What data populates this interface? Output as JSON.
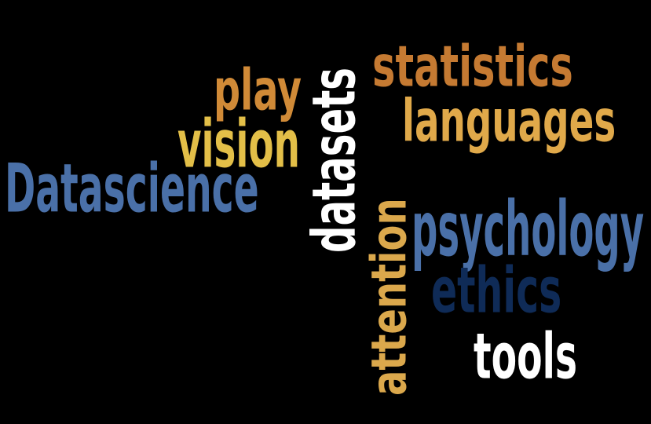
{
  "palette": {
    "background": "#000000",
    "blue": "#4a70a8",
    "navy": "#0f2b57",
    "orange": "#c57a32",
    "gold": "#e0a94a",
    "yellow": "#e3bf48",
    "white": "#ffffff"
  },
  "words": [
    {
      "id": "statistics",
      "text": "statistics",
      "color": "#c57a32",
      "orientation": "horizontal"
    },
    {
      "id": "play",
      "text": "play",
      "color": "#d08a37",
      "orientation": "horizontal"
    },
    {
      "id": "languages",
      "text": "languages",
      "color": "#e0a94a",
      "orientation": "horizontal"
    },
    {
      "id": "vision",
      "text": "vision",
      "color": "#e3bf48",
      "orientation": "horizontal"
    },
    {
      "id": "datascience",
      "text": "Datascience",
      "color": "#4a70a8",
      "orientation": "horizontal"
    },
    {
      "id": "datasets",
      "text": "datasets",
      "color": "#ffffff",
      "orientation": "vertical"
    },
    {
      "id": "attention",
      "text": "attention",
      "color": "#dba84c",
      "orientation": "vertical"
    },
    {
      "id": "psychology",
      "text": "psychology",
      "color": "#4a70a8",
      "orientation": "horizontal"
    },
    {
      "id": "ethics",
      "text": "ethics",
      "color": "#0f2b57",
      "orientation": "horizontal"
    },
    {
      "id": "tools",
      "text": "tools",
      "color": "#ffffff",
      "orientation": "horizontal"
    }
  ]
}
